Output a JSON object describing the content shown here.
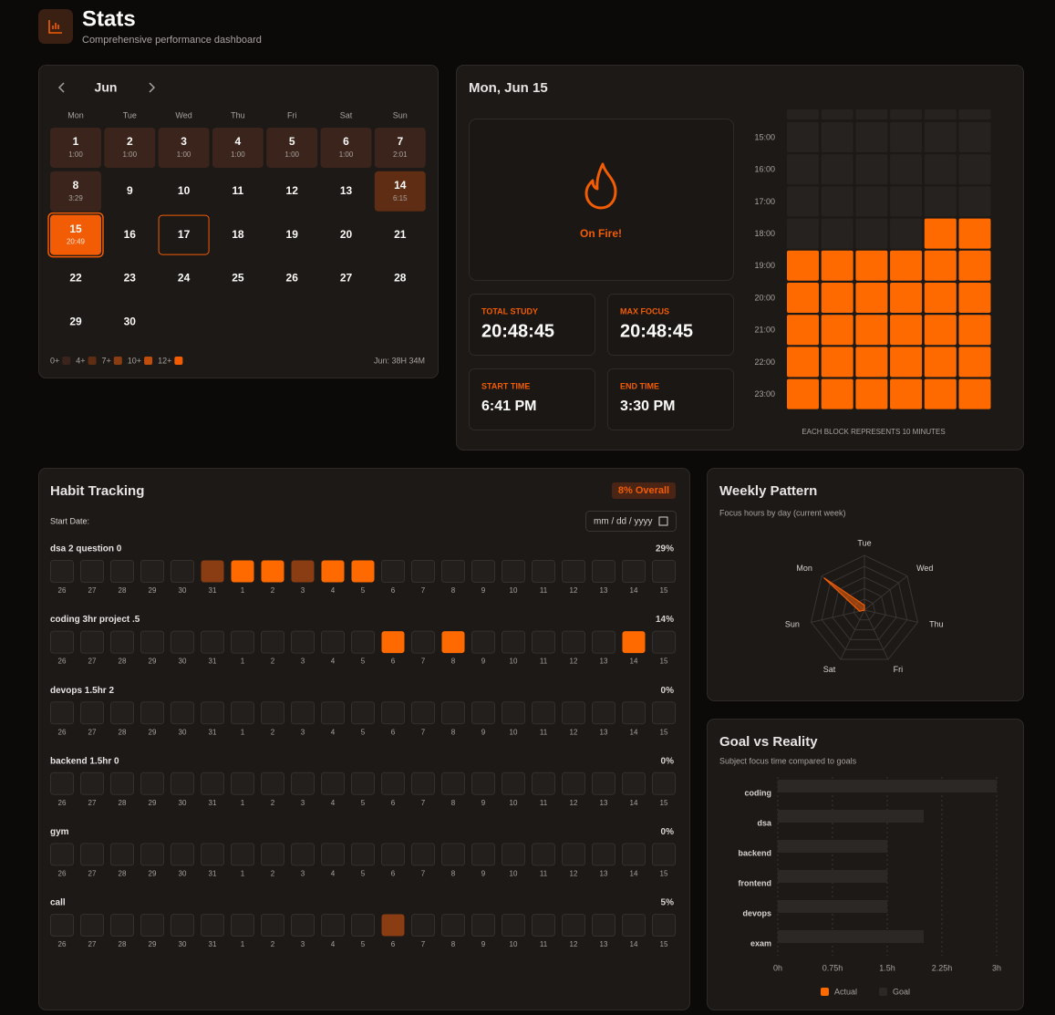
{
  "header": {
    "title": "Stats",
    "subtitle": "Comprehensive performance dashboard"
  },
  "calendar": {
    "month": "Jun",
    "weekdays": [
      "Mon",
      "Tue",
      "Wed",
      "Thu",
      "Fri",
      "Sat",
      "Sun"
    ],
    "weeks": [
      [
        {
          "day": 1,
          "time": "1:00",
          "level": 0
        },
        {
          "day": 2,
          "time": "1:00",
          "level": 0
        },
        {
          "day": 3,
          "time": "1:00",
          "level": 0
        },
        {
          "day": 4,
          "time": "1:00",
          "level": 0
        },
        {
          "day": 5,
          "time": "1:00",
          "level": 0
        },
        {
          "day": 6,
          "time": "1:00",
          "level": 0
        },
        {
          "day": 7,
          "time": "2:01",
          "level": 0
        }
      ],
      [
        {
          "day": 8,
          "time": "3:29",
          "level": 0
        },
        {
          "day": 9
        },
        {
          "day": 10
        },
        {
          "day": 11
        },
        {
          "day": 12
        },
        {
          "day": 13
        },
        {
          "day": 14,
          "time": "6:15",
          "level": 1
        }
      ],
      [
        {
          "day": 15,
          "time": "20:49",
          "level": 4,
          "today": true
        },
        {
          "day": 16
        },
        {
          "day": 17,
          "selected": true
        },
        {
          "day": 18
        },
        {
          "day": 19
        },
        {
          "day": 20
        },
        {
          "day": 21
        }
      ],
      [
        {
          "day": 22
        },
        {
          "day": 23
        },
        {
          "day": 24
        },
        {
          "day": 25
        },
        {
          "day": 26
        },
        {
          "day": 27
        },
        {
          "day": 28
        }
      ],
      [
        {
          "day": 29
        },
        {
          "day": 30
        }
      ]
    ],
    "legend": [
      "0+",
      "4+",
      "7+",
      "10+",
      "12+"
    ],
    "legend_colors": [
      "#3a241b",
      "#5e2d14",
      "#8a3d12",
      "#c04d0c",
      "#f25c05"
    ],
    "total": "Jun: 38H 34M"
  },
  "day_detail": {
    "title": "Mon, Jun 15",
    "status": "On Fire!",
    "stats": [
      {
        "label": "TOTAL STUDY",
        "value": "20:48:45"
      },
      {
        "label": "MAX FOCUS",
        "value": "20:48:45"
      },
      {
        "label": "START TIME",
        "value": "6:41 PM"
      },
      {
        "label": "END TIME",
        "value": "3:30 PM"
      }
    ],
    "hours": [
      "15:00",
      "16:00",
      "17:00",
      "18:00",
      "19:00",
      "20:00",
      "21:00",
      "22:00",
      "23:00"
    ],
    "blocks": [
      [
        0,
        0,
        0,
        0,
        0,
        0
      ],
      [
        0,
        0,
        0,
        0,
        0,
        0
      ],
      [
        0,
        0,
        0,
        0,
        0,
        0
      ],
      [
        0,
        0,
        0,
        0,
        1,
        1
      ],
      [
        1,
        1,
        1,
        1,
        1,
        1
      ],
      [
        1,
        1,
        1,
        1,
        1,
        1
      ],
      [
        1,
        1,
        1,
        1,
        1,
        1
      ],
      [
        1,
        1,
        1,
        1,
        1,
        1
      ],
      [
        1,
        1,
        1,
        1,
        1,
        1
      ]
    ],
    "caption": "EACH BLOCK REPRESENTS 10 MINUTES"
  },
  "habits": {
    "title": "Habit Tracking",
    "overall": "8% Overall",
    "start_label": "Start Date:",
    "date_placeholder": "mm / dd / yyyy",
    "days": [
      "26",
      "27",
      "28",
      "29",
      "30",
      "31",
      "1",
      "2",
      "3",
      "4",
      "5",
      "6",
      "7",
      "8",
      "9",
      "10",
      "11",
      "12",
      "13",
      "14",
      "15"
    ],
    "level_colors": [
      "#231f1d",
      "#8a3d12",
      "#ff6a00"
    ],
    "items": [
      {
        "name": "dsa 2 question 0",
        "percent": "29%",
        "cells": [
          0,
          0,
          0,
          0,
          0,
          1,
          2,
          2,
          1,
          2,
          2,
          0,
          0,
          0,
          0,
          0,
          0,
          0,
          0,
          0,
          0
        ]
      },
      {
        "name": "coding 3hr project .5",
        "percent": "14%",
        "cells": [
          0,
          0,
          0,
          0,
          0,
          0,
          0,
          0,
          0,
          0,
          0,
          2,
          0,
          2,
          0,
          0,
          0,
          0,
          0,
          2,
          0
        ]
      },
      {
        "name": "devops 1.5hr 2",
        "percent": "0%",
        "cells": [
          0,
          0,
          0,
          0,
          0,
          0,
          0,
          0,
          0,
          0,
          0,
          0,
          0,
          0,
          0,
          0,
          0,
          0,
          0,
          0,
          0
        ]
      },
      {
        "name": "backend 1.5hr 0",
        "percent": "0%",
        "cells": [
          0,
          0,
          0,
          0,
          0,
          0,
          0,
          0,
          0,
          0,
          0,
          0,
          0,
          0,
          0,
          0,
          0,
          0,
          0,
          0,
          0
        ]
      },
      {
        "name": "gym",
        "percent": "0%",
        "cells": [
          0,
          0,
          0,
          0,
          0,
          0,
          0,
          0,
          0,
          0,
          0,
          0,
          0,
          0,
          0,
          0,
          0,
          0,
          0,
          0,
          0
        ]
      },
      {
        "name": "call",
        "percent": "5%",
        "cells": [
          0,
          0,
          0,
          0,
          0,
          0,
          0,
          0,
          0,
          0,
          0,
          1,
          0,
          0,
          0,
          0,
          0,
          0,
          0,
          0,
          0
        ]
      }
    ]
  },
  "chart_data": [
    {
      "type": "radar",
      "title": "Weekly Pattern",
      "subtitle": "Focus hours by day (current week)",
      "categories": [
        "Tue",
        "Wed",
        "Thu",
        "Fri",
        "Sat",
        "Sun",
        "Mon"
      ],
      "values": [
        2,
        0,
        0,
        0,
        0,
        2,
        20.8
      ],
      "rlim": [
        0,
        22
      ],
      "color": "#f25c05"
    },
    {
      "type": "bar",
      "orientation": "horizontal",
      "title": "Goal vs Reality",
      "subtitle": "Subject focus time compared to goals",
      "categories": [
        "coding",
        "dsa",
        "backend",
        "frontend",
        "devops",
        "exam"
      ],
      "series": [
        {
          "name": "Goal",
          "color": "#2c2826",
          "values": [
            3,
            2,
            1.5,
            1.5,
            1.5,
            2
          ]
        },
        {
          "name": "Actual",
          "color": "#ff6a00",
          "values": [
            0,
            0,
            0,
            0,
            0,
            0
          ]
        }
      ],
      "legend_order": [
        1,
        0
      ],
      "xlim": [
        0,
        3
      ],
      "xticks": [
        {
          "value": 0,
          "label": "0h"
        },
        {
          "value": 0.75,
          "label": "0.75h"
        },
        {
          "value": 1.5,
          "label": "1.5h"
        },
        {
          "value": 2.25,
          "label": "2.25h"
        },
        {
          "value": 3,
          "label": "3h"
        }
      ],
      "grid": true
    }
  ]
}
